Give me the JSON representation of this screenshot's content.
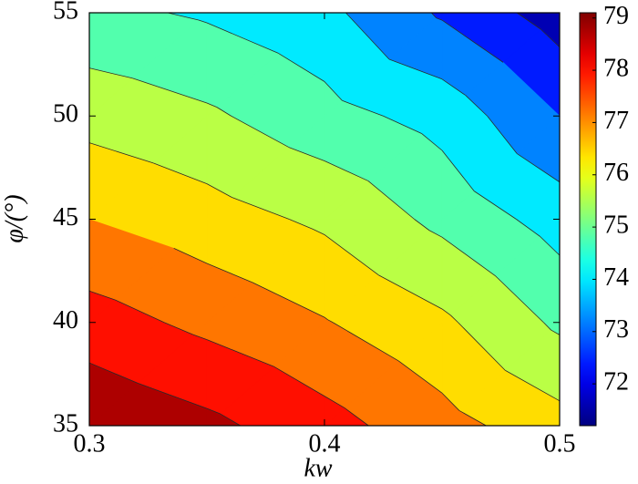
{
  "chart_data": {
    "type": "contourf",
    "xlabel": "kw",
    "ylabel": "φ/(°)",
    "x": [
      0.3,
      0.35,
      0.4,
      0.45,
      0.5
    ],
    "y": [
      35,
      40,
      45,
      50,
      55
    ],
    "z": [
      [
        79.1,
        78.6,
        77.9,
        77.1,
        76.3
      ],
      [
        77.95,
        77.4,
        76.85,
        76.15,
        75.05
      ],
      [
        76.8,
        76.35,
        75.85,
        75.0,
        74.05
      ],
      [
        75.72,
        75.33,
        74.7,
        74.1,
        72.8
      ],
      [
        74.6,
        74.3,
        73.8,
        72.7,
        71.6
      ]
    ],
    "levels": [
      72.0,
      72.8,
      73.6,
      74.4,
      75.2,
      76.0,
      76.8,
      77.6,
      78.4
    ],
    "colormap": "jet",
    "line_color": "#2a2a2a",
    "xlim": [
      0.3,
      0.5
    ],
    "xticks": [
      0.3,
      0.4,
      0.5
    ],
    "ylim": [
      35,
      55
    ],
    "yticks": [
      35,
      40,
      45,
      50,
      55
    ],
    "clim": [
      71.2,
      79.1
    ],
    "cticks": [
      72,
      73,
      74,
      75,
      76,
      77,
      78,
      79
    ]
  }
}
